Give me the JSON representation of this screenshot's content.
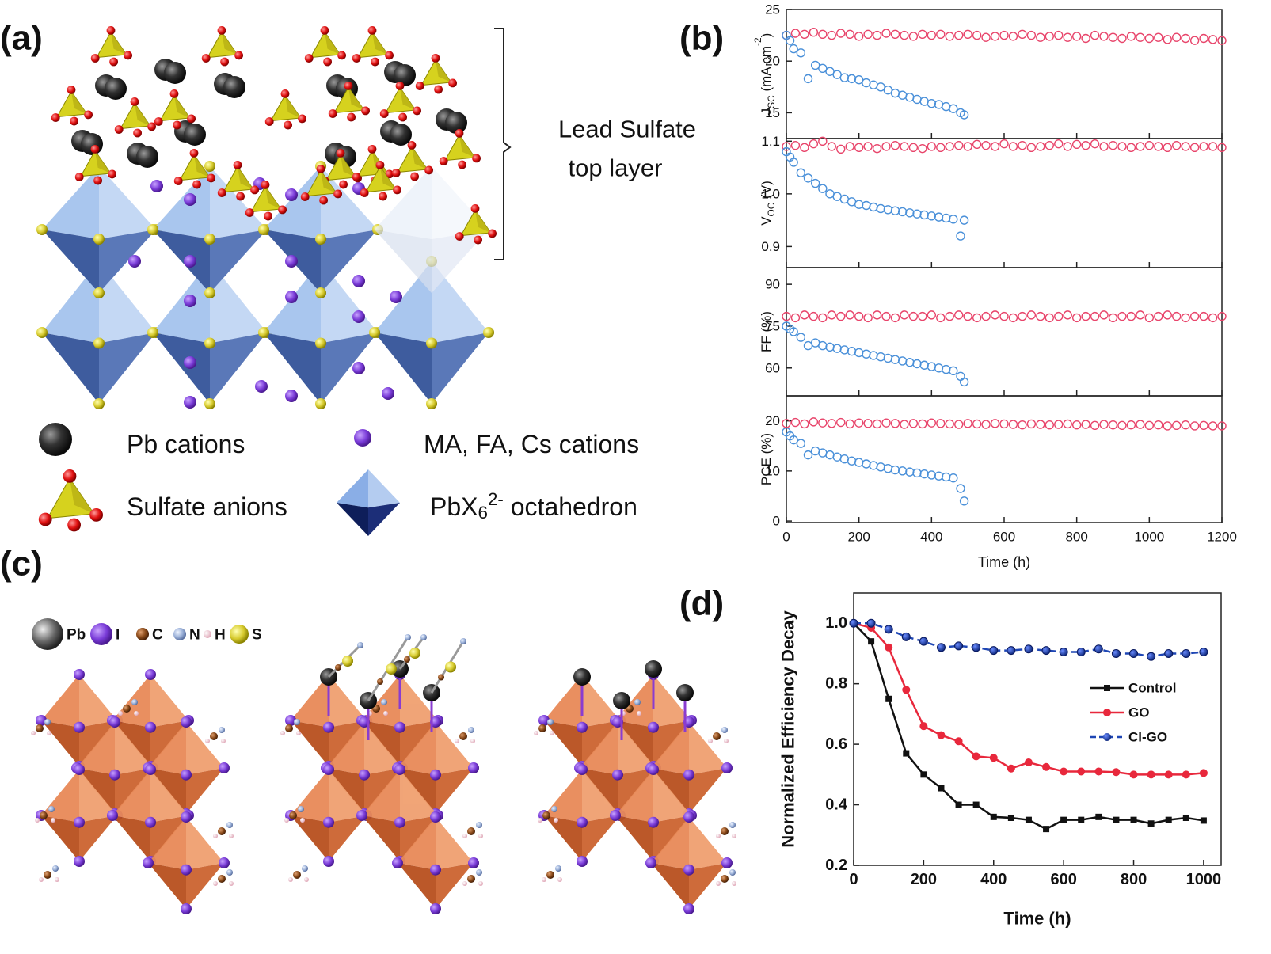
{
  "panel_labels": [
    "(a)",
    "(b)",
    "(c)",
    "(d)"
  ],
  "panel_a": {
    "bracket_label": [
      "Lead Sulfate",
      "top layer"
    ],
    "legend": [
      [
        {
          "t": "Pb cations"
        }
      ],
      [
        {
          "t": "MA, FA, Cs cations"
        }
      ],
      [
        {
          "t": "Sulfate anions"
        }
      ],
      [
        {
          "t": "PbX"
        },
        {
          "t": "6",
          "shift": "sub"
        },
        {
          "t": "2-",
          "shift": "sup"
        },
        {
          "t": " octahedron"
        }
      ]
    ]
  },
  "panel_c": {
    "legend": [
      "Pb",
      "I",
      "C",
      "N",
      "H",
      "S"
    ]
  },
  "chart_data": [
    {
      "type": "scatter",
      "ylabel": [
        {
          "t": "J"
        },
        {
          "t": "SC",
          "shift": "sub"
        },
        {
          "t": " (mA cm"
        },
        {
          "t": "-2",
          "shift": "sup"
        },
        {
          "t": ")"
        }
      ],
      "xlim": [
        0,
        1200
      ],
      "xticks": [
        0,
        200,
        400,
        600,
        800,
        1000,
        1200
      ],
      "show_xtick_labels": false,
      "ylim": [
        12.5,
        25
      ],
      "yticks": [
        15,
        20,
        25
      ],
      "series": [
        {
          "color": "#e8456b",
          "x": [
            0,
            25,
            50,
            75,
            100,
            125,
            150,
            175,
            200,
            225,
            250,
            275,
            300,
            325,
            350,
            375,
            400,
            425,
            450,
            475,
            500,
            525,
            550,
            575,
            600,
            625,
            650,
            675,
            700,
            725,
            750,
            775,
            800,
            825,
            850,
            875,
            900,
            925,
            950,
            975,
            1000,
            1025,
            1050,
            1075,
            1100,
            1125,
            1150,
            1175,
            1200
          ],
          "values": [
            22.5,
            22.7,
            22.6,
            22.8,
            22.6,
            22.5,
            22.7,
            22.6,
            22.4,
            22.6,
            22.5,
            22.7,
            22.6,
            22.5,
            22.4,
            22.6,
            22.5,
            22.6,
            22.4,
            22.5,
            22.6,
            22.5,
            22.3,
            22.4,
            22.5,
            22.4,
            22.6,
            22.5,
            22.3,
            22.4,
            22.5,
            22.3,
            22.4,
            22.2,
            22.5,
            22.4,
            22.3,
            22.2,
            22.4,
            22.3,
            22.2,
            22.3,
            22.1,
            22.3,
            22.2,
            22.0,
            22.2,
            22.1,
            22.0
          ]
        },
        {
          "color": "#4a90d9",
          "x": [
            0,
            10,
            20,
            40,
            60,
            80,
            100,
            120,
            140,
            160,
            180,
            200,
            220,
            240,
            260,
            280,
            300,
            320,
            340,
            360,
            380,
            400,
            420,
            440,
            460,
            480,
            490
          ],
          "values": [
            22.5,
            22.0,
            21.2,
            20.8,
            18.3,
            19.6,
            19.3,
            19.0,
            18.7,
            18.4,
            18.3,
            18.2,
            17.9,
            17.7,
            17.5,
            17.2,
            16.9,
            16.7,
            16.5,
            16.3,
            16.1,
            15.9,
            15.8,
            15.6,
            15.4,
            15.0,
            14.8
          ]
        }
      ]
    },
    {
      "type": "scatter",
      "ylabel": [
        {
          "t": "V"
        },
        {
          "t": "OC",
          "shift": "sub"
        },
        {
          "t": " (V)"
        }
      ],
      "xlim": [
        0,
        1200
      ],
      "xticks": [
        0,
        200,
        400,
        600,
        800,
        1000,
        1200
      ],
      "show_xtick_labels": false,
      "ylim": [
        0.86,
        1.105
      ],
      "yticks": [
        0.9,
        {
          "value": 1,
          "label": "1.0"
        },
        1.1
      ],
      "series": [
        {
          "color": "#e8456b",
          "x": [
            0,
            25,
            50,
            75,
            100,
            125,
            150,
            175,
            200,
            225,
            250,
            275,
            300,
            325,
            350,
            375,
            400,
            425,
            450,
            475,
            500,
            525,
            550,
            575,
            600,
            625,
            650,
            675,
            700,
            725,
            750,
            775,
            800,
            825,
            850,
            875,
            900,
            925,
            950,
            975,
            1000,
            1025,
            1050,
            1075,
            1100,
            1125,
            1150,
            1175,
            1200
          ],
          "values": [
            1.09,
            1.092,
            1.088,
            1.095,
            1.1,
            1.09,
            1.085,
            1.09,
            1.088,
            1.09,
            1.086,
            1.09,
            1.092,
            1.09,
            1.088,
            1.086,
            1.09,
            1.088,
            1.09,
            1.092,
            1.09,
            1.094,
            1.092,
            1.09,
            1.095,
            1.09,
            1.092,
            1.088,
            1.09,
            1.092,
            1.095,
            1.09,
            1.094,
            1.092,
            1.095,
            1.09,
            1.092,
            1.09,
            1.088,
            1.09,
            1.092,
            1.09,
            1.088,
            1.092,
            1.09,
            1.088,
            1.09,
            1.09,
            1.088
          ]
        },
        {
          "color": "#4a90d9",
          "x": [
            0,
            10,
            20,
            40,
            60,
            80,
            100,
            120,
            140,
            160,
            180,
            200,
            220,
            240,
            260,
            280,
            300,
            320,
            340,
            360,
            380,
            400,
            420,
            440,
            460,
            480,
            490
          ],
          "values": [
            1.08,
            1.07,
            1.06,
            1.04,
            1.03,
            1.02,
            1.01,
            1.0,
            0.995,
            0.99,
            0.985,
            0.98,
            0.978,
            0.975,
            0.972,
            0.97,
            0.968,
            0.966,
            0.964,
            0.962,
            0.96,
            0.958,
            0.956,
            0.954,
            0.952,
            0.92,
            0.95
          ]
        }
      ]
    },
    {
      "type": "scatter",
      "ylabel": [
        {
          "t": "FF (%)"
        }
      ],
      "xlim": [
        0,
        1200
      ],
      "xticks": [
        0,
        200,
        400,
        600,
        800,
        1000,
        1200
      ],
      "show_xtick_labels": false,
      "ylim": [
        50,
        96
      ],
      "yticks": [
        60,
        75,
        90
      ],
      "series": [
        {
          "color": "#e8456b",
          "x": [
            0,
            25,
            50,
            75,
            100,
            125,
            150,
            175,
            200,
            225,
            250,
            275,
            300,
            325,
            350,
            375,
            400,
            425,
            450,
            475,
            500,
            525,
            550,
            575,
            600,
            625,
            650,
            675,
            700,
            725,
            750,
            775,
            800,
            825,
            850,
            875,
            900,
            925,
            950,
            975,
            1000,
            1025,
            1050,
            1075,
            1100,
            1125,
            1150,
            1175,
            1200
          ],
          "values": [
            78.5,
            78,
            79,
            78.5,
            78,
            79,
            78.5,
            79,
            78.5,
            78,
            79,
            78.5,
            78,
            79,
            78.5,
            78.5,
            79,
            78,
            78.5,
            79,
            78.5,
            78,
            78.5,
            79,
            78.5,
            78,
            78.5,
            79,
            78.5,
            78,
            78.5,
            79,
            78,
            78.5,
            78.5,
            79,
            78,
            78.5,
            78.5,
            79,
            78,
            78.5,
            79,
            78.5,
            78,
            78.5,
            78.5,
            78,
            78.5
          ]
        },
        {
          "color": "#4a90d9",
          "x": [
            0,
            10,
            20,
            40,
            60,
            80,
            100,
            120,
            140,
            160,
            180,
            200,
            220,
            240,
            260,
            280,
            300,
            320,
            340,
            360,
            380,
            400,
            420,
            440,
            460,
            480,
            490
          ],
          "values": [
            75,
            74,
            73,
            71,
            68,
            69,
            68,
            67.5,
            67,
            66.5,
            66,
            65.5,
            65,
            64.5,
            64,
            63.5,
            63,
            62.5,
            62,
            61.5,
            61,
            60.5,
            60,
            59.5,
            59,
            57,
            55
          ]
        }
      ]
    },
    {
      "type": "scatter",
      "ylabel": [
        {
          "t": "PCE (%)"
        }
      ],
      "xlabel": "Time (h)",
      "xlim": [
        0,
        1200
      ],
      "xticks": [
        0,
        200,
        400,
        600,
        800,
        1000,
        1200
      ],
      "show_xtick_labels": true,
      "ylim": [
        -0.3,
        25
      ],
      "yticks": [
        0,
        10,
        20
      ],
      "series": [
        {
          "color": "#e8456b",
          "x": [
            0,
            25,
            50,
            75,
            100,
            125,
            150,
            175,
            200,
            225,
            250,
            275,
            300,
            325,
            350,
            375,
            400,
            425,
            450,
            475,
            500,
            525,
            550,
            575,
            600,
            625,
            650,
            675,
            700,
            725,
            750,
            775,
            800,
            825,
            850,
            875,
            900,
            925,
            950,
            975,
            1000,
            1025,
            1050,
            1075,
            1100,
            1125,
            1150,
            1175,
            1200
          ],
          "values": [
            19.5,
            19.7,
            19.4,
            19.8,
            19.6,
            19.5,
            19.7,
            19.4,
            19.6,
            19.5,
            19.4,
            19.6,
            19.5,
            19.3,
            19.5,
            19.4,
            19.6,
            19.5,
            19.4,
            19.3,
            19.5,
            19.4,
            19.3,
            19.5,
            19.4,
            19.3,
            19.2,
            19.4,
            19.3,
            19.2,
            19.3,
            19.4,
            19.2,
            19.3,
            19.1,
            19.3,
            19.2,
            19.1,
            19.2,
            19.3,
            19.1,
            19.2,
            19.0,
            19.1,
            19.2,
            19.0,
            19.1,
            19.0,
            19.0
          ]
        },
        {
          "color": "#4a90d9",
          "x": [
            0,
            10,
            20,
            40,
            60,
            80,
            100,
            120,
            140,
            160,
            180,
            200,
            220,
            240,
            260,
            280,
            300,
            320,
            340,
            360,
            380,
            400,
            420,
            440,
            460,
            480,
            490
          ],
          "values": [
            17.8,
            17,
            16.2,
            15.5,
            13.2,
            14,
            13.6,
            13.2,
            12.8,
            12.4,
            12,
            11.7,
            11.4,
            11.1,
            10.8,
            10.5,
            10.2,
            10,
            9.8,
            9.6,
            9.4,
            9.2,
            9,
            8.8,
            8.6,
            6.5,
            4
          ]
        }
      ]
    },
    {
      "type": "line",
      "ylabel": "Normalized Efficiency Decay",
      "xlabel": "Time (h)",
      "xlim": [
        0,
        1050
      ],
      "xticks": [
        0,
        200,
        400,
        600,
        800,
        1000
      ],
      "show_xtick_labels": true,
      "ylim": [
        0.2,
        1.1
      ],
      "yticks": [
        0.2,
        0.4,
        0.6,
        0.8,
        {
          "value": 1,
          "label": "1.0"
        }
      ],
      "legend": "right",
      "x": [
        0,
        50,
        100,
        150,
        200,
        250,
        300,
        350,
        400,
        450,
        500,
        550,
        600,
        650,
        700,
        750,
        800,
        850,
        900,
        950,
        1000
      ],
      "series": [
        {
          "name": "Control",
          "color": "#111111",
          "marker": "square",
          "linestyle": "solid",
          "values": [
            1.0,
            0.94,
            0.75,
            0.57,
            0.5,
            0.455,
            0.4,
            0.4,
            0.36,
            0.357,
            0.35,
            0.32,
            0.35,
            0.35,
            0.36,
            0.35,
            0.35,
            0.338,
            0.35,
            0.357,
            0.348
          ]
        },
        {
          "name": "GO",
          "color": "#e8283c",
          "marker": "circle",
          "linestyle": "solid",
          "values": [
            1.0,
            0.985,
            0.92,
            0.78,
            0.66,
            0.63,
            0.61,
            0.56,
            0.555,
            0.52,
            0.54,
            0.525,
            0.51,
            0.51,
            0.51,
            0.508,
            0.5,
            0.5,
            0.5,
            0.5,
            0.505
          ]
        },
        {
          "name": "Cl-GO",
          "color": "#1e46b4",
          "marker": "circle",
          "linestyle": "dashed",
          "values": [
            1.0,
            1.0,
            0.98,
            0.955,
            0.94,
            0.92,
            0.925,
            0.92,
            0.91,
            0.91,
            0.915,
            0.91,
            0.905,
            0.905,
            0.915,
            0.9,
            0.9,
            0.89,
            0.9,
            0.9,
            0.905
          ]
        }
      ]
    }
  ]
}
